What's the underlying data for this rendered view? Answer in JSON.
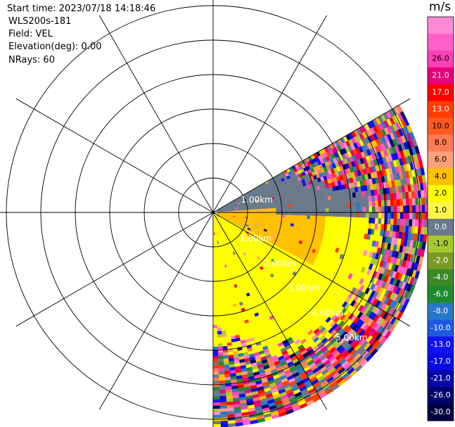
{
  "header": {
    "start_time": "Start time: 2023/07/18 14:18:46",
    "instrument": "WLS200s-181",
    "field": "Field: VEL",
    "elevation": "Elevation(deg): 0.00",
    "nrays": "NRays: 60"
  },
  "chart_data": {
    "type": "heatmap",
    "projection": "polar PPI",
    "range_rings_km": [
      1,
      2,
      3,
      4,
      5,
      6
    ],
    "range_ring_labels": [
      "1.00km",
      "2.00km",
      "3.00km",
      "4.00km",
      "5.00km"
    ],
    "partial_ring_label": "1.00km",
    "azimuth_spokes_deg": [
      0,
      30,
      60,
      90,
      120,
      150,
      180,
      210,
      240,
      270,
      300,
      330
    ],
    "scan_sector_deg": [
      60,
      180
    ],
    "max_range_km": 6.2,
    "colorbar": {
      "unit": "m/s",
      "tick_labels": [
        "26.0",
        "21.0",
        "17.0",
        "13.0",
        "10.0",
        "8.0",
        "6.0",
        "4.0",
        "2.0",
        "1.0",
        "0.0",
        "-1.0",
        "-2.0",
        "-4.0",
        "-6.0",
        "-8.0",
        "-10.0",
        "-13.0",
        "-17.0",
        "-21.0",
        "-26.0",
        "-30.0"
      ],
      "colors": [
        "#ff3fb8",
        "#e8007a",
        "#ff0000",
        "#ff3d00",
        "#ff5a20",
        "#ff7a55",
        "#ffa07a",
        "#ffc000",
        "#ffff00",
        "#fff44a",
        "#6b7a8a",
        "#a8c830",
        "#7a9a28",
        "#3a8a28",
        "#1e8a2e",
        "#2a78c8",
        "#1e5ae0",
        "#1212f0",
        "#0a0ae0",
        "#0808a8",
        "#02026a",
        "#000040"
      ],
      "colors_above_top": [
        "#ff60c8",
        "#ff8ad8"
      ]
    },
    "field_description": "Doppler radial velocity; near range zero (grey) toward 60-90 deg, positive (yellow) 90-180 deg, noisy multicolor at far range"
  }
}
